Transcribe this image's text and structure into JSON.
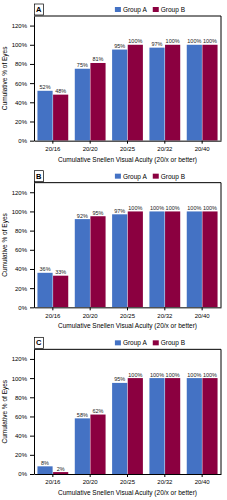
{
  "chart_data": [
    {
      "type": "bar",
      "title": "A",
      "categories": [
        "20/16",
        "20/20",
        "20/25",
        "20/32",
        "20/40"
      ],
      "series": [
        {
          "name": "Group A",
          "color": "#4472C4",
          "values": [
            52,
            75,
            95,
            97,
            100
          ],
          "value_labels": [
            "52%",
            "75%",
            "95%",
            "97%",
            "100%"
          ]
        },
        {
          "name": "Group B",
          "color": "#8B0040",
          "values": [
            48,
            81,
            100,
            100,
            100
          ],
          "value_labels": [
            "48%",
            "81%",
            "100%",
            "100%",
            "100%"
          ]
        }
      ],
      "xlabel": "Cumulative Snellen Visual Acuity (20/x or better)",
      "ylabel": "Cumulative % of Eyes",
      "ylim": [
        0,
        130
      ],
      "yticks": [
        {
          "value": 0,
          "label": "0%"
        },
        {
          "value": 20,
          "label": "20%"
        },
        {
          "value": 40,
          "label": "40%"
        },
        {
          "value": 60,
          "label": "60%"
        },
        {
          "value": 80,
          "label": "80%"
        },
        {
          "value": 100,
          "label": "100%"
        },
        {
          "value": 120,
          "label": "120%"
        }
      ],
      "legend": "upper center",
      "data_labels": true,
      "grid": false
    },
    {
      "type": "bar",
      "title": "B",
      "categories": [
        "20/16",
        "20/20",
        "20/25",
        "20/32",
        "20/40"
      ],
      "series": [
        {
          "name": "Group A",
          "color": "#4472C4",
          "values": [
            36,
            92,
            97,
            100,
            100
          ],
          "value_labels": [
            "36%",
            "92%",
            "97%",
            "100%",
            "100%"
          ]
        },
        {
          "name": "Group B",
          "color": "#8B0040",
          "values": [
            33,
            95,
            100,
            100,
            100
          ],
          "value_labels": [
            "33%",
            "95%",
            "100%",
            "100%",
            "100%"
          ]
        }
      ],
      "xlabel": "Cumulative Snellen Visual Acuity (20/x or better)",
      "ylabel": "Cumulative % of Eyes",
      "ylim": [
        0,
        130
      ],
      "yticks": [
        {
          "value": 0,
          "label": "0%"
        },
        {
          "value": 20,
          "label": "20%"
        },
        {
          "value": 40,
          "label": "40%"
        },
        {
          "value": 60,
          "label": "60%"
        },
        {
          "value": 80,
          "label": "80%"
        },
        {
          "value": 100,
          "label": "100%"
        },
        {
          "value": 120,
          "label": "120%"
        }
      ],
      "legend": "upper center",
      "data_labels": true,
      "grid": false
    },
    {
      "type": "bar",
      "title": "C",
      "categories": [
        "20/16",
        "20/20",
        "20/25",
        "20/32",
        "20/40"
      ],
      "series": [
        {
          "name": "Group A",
          "color": "#4472C4",
          "values": [
            8,
            58,
            95,
            100,
            100
          ],
          "value_labels": [
            "8%",
            "58%",
            "95%",
            "100%",
            "100%"
          ]
        },
        {
          "name": "Group B",
          "color": "#8B0040",
          "values": [
            2,
            62,
            100,
            100,
            100
          ],
          "value_labels": [
            "2%",
            "62%",
            "100%",
            "100%",
            "100%"
          ]
        }
      ],
      "xlabel": "Cumulative Snellen Visual Acuity (20/x or better)",
      "ylabel": "Cumulative % of Eyes",
      "ylim": [
        0,
        130
      ],
      "yticks": [
        {
          "value": 0,
          "label": "0%"
        },
        {
          "value": 20,
          "label": "20%"
        },
        {
          "value": 40,
          "label": "40%"
        },
        {
          "value": 60,
          "label": "60%"
        },
        {
          "value": 80,
          "label": "80%"
        },
        {
          "value": 100,
          "label": "100%"
        },
        {
          "value": 120,
          "label": "120%"
        }
      ],
      "legend": "upper center",
      "data_labels": true,
      "grid": false
    }
  ]
}
